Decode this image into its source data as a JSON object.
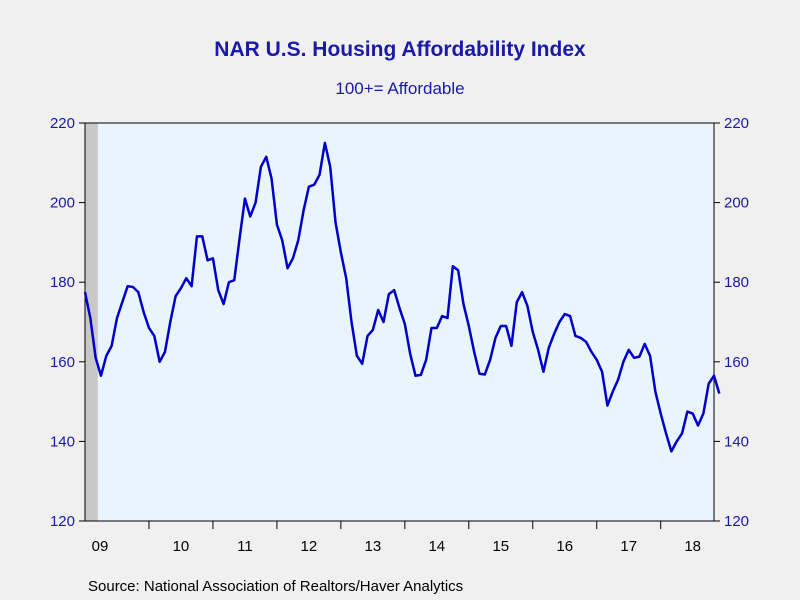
{
  "chart_data": {
    "type": "line",
    "title": "NAR U.S. Housing Affordability Index",
    "subtitle": "100+= Affordable",
    "source": "Source:  National Association of Realtors/Haver Analytics",
    "ylim": [
      120,
      220
    ],
    "yticks": [
      120,
      140,
      160,
      180,
      200,
      220
    ],
    "xlim": [
      2009.0,
      2018.833
    ],
    "xticks": [
      {
        "label": "09",
        "year": 2009
      },
      {
        "label": "10",
        "year": 2010
      },
      {
        "label": "11",
        "year": 2011
      },
      {
        "label": "12",
        "year": 2012
      },
      {
        "label": "13",
        "year": 2013
      },
      {
        "label": "14",
        "year": 2014
      },
      {
        "label": "15",
        "year": 2015
      },
      {
        "label": "16",
        "year": 2016
      },
      {
        "label": "17",
        "year": 2017
      },
      {
        "label": "18",
        "year": 2018
      }
    ],
    "recession": {
      "start": 2009.0,
      "end": 2009.2,
      "color": "#c8c8c8"
    },
    "colors": {
      "line": "#0000c8",
      "plot_bg": "#eaf4fd",
      "axis": "#000000"
    },
    "grid": false,
    "legend": "none",
    "series": [
      {
        "start": 2009.0,
        "step_months": 1,
        "values": [
          177.5,
          171,
          161,
          156.5,
          161.5,
          164,
          171,
          175,
          179,
          178.8,
          177.5,
          172.5,
          168.5,
          166.5,
          160,
          162.5,
          170,
          176.5,
          178.5,
          181,
          179,
          191.5,
          191.5,
          185.5,
          186,
          178,
          174.5,
          180,
          180.5,
          191,
          201,
          196.5,
          200,
          209,
          211.5,
          206,
          194.5,
          190.5,
          183.5,
          186,
          190.5,
          198,
          204,
          204.5,
          207,
          215,
          209,
          195,
          187.5,
          181,
          170,
          161.5,
          159.5,
          166.5,
          168,
          173,
          170,
          177,
          178,
          173.5,
          169.5,
          162,
          156.5,
          156.7,
          160.5,
          168.5,
          168.5,
          171.5,
          171,
          184,
          183,
          174.5,
          169,
          162.5,
          157,
          156.8,
          160.5,
          166,
          169,
          169,
          164,
          175,
          177.5,
          174,
          167.5,
          163,
          157.5,
          163.5,
          167,
          170,
          172,
          171.5,
          166.5,
          166,
          165,
          162.5,
          160.5,
          157.5,
          149,
          152.5,
          155.5,
          160,
          163,
          161,
          161.3,
          164.5,
          161.5,
          152.5,
          147,
          142,
          137.5,
          140,
          142,
          147.5,
          147,
          144,
          147,
          154.5,
          156.5,
          152
        ]
      }
    ]
  }
}
